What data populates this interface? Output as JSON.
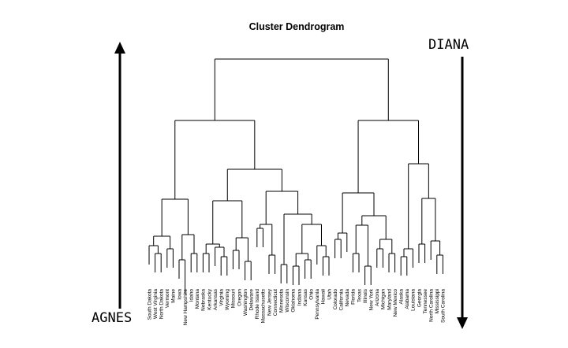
{
  "title": "Cluster Dendrogram",
  "left_label": "AGNES",
  "right_label": "DIANA",
  "leaves": [
    "South Dakota",
    "West Virginia",
    "North Dakota",
    "Vermont",
    "Maine",
    "Iowa",
    "New Hampshire",
    "Idaho",
    "Montana",
    "Nebraska",
    "Kentucky",
    "Arkansas",
    "Virginia",
    "Wyoming",
    "Missouri",
    "Oregon",
    "Washington",
    "Delaware",
    "Rhode Island",
    "Massachusetts",
    "New Jersey",
    "Connecticut",
    "Minnesota",
    "Wisconsin",
    "Oklahoma",
    "Indiana",
    "Kansas",
    "Ohio",
    "Pennsylvania",
    "Hawaii",
    "Utah",
    "Colorado",
    "California",
    "Nevada",
    "Florida",
    "Texas",
    "Illinois",
    "New York",
    "Arizona",
    "Michigan",
    "Maryland",
    "New Mexico",
    "Alaska",
    "Alabama",
    "Louisiana",
    "Georgia",
    "Tennessee",
    "North Carolina",
    "Mississippi",
    "South Carolina"
  ]
}
